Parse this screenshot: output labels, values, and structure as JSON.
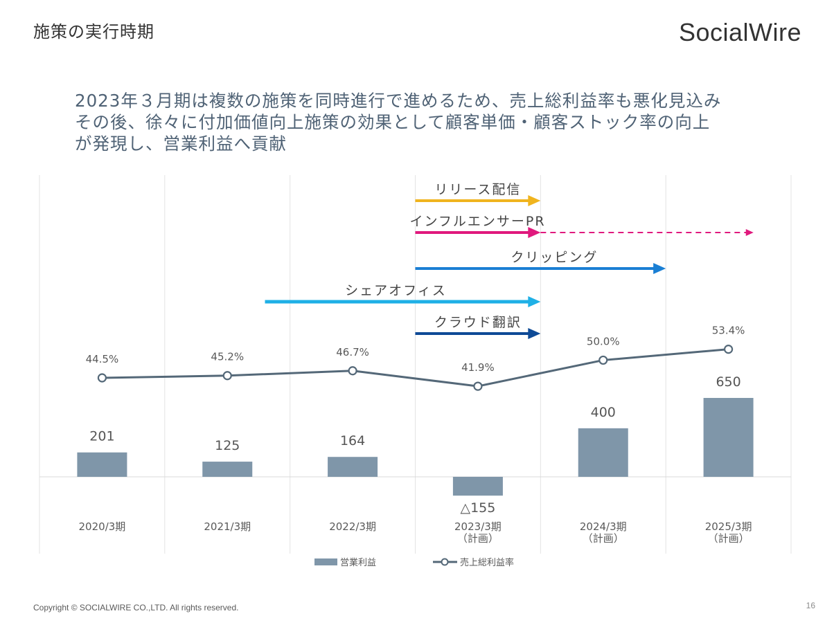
{
  "page": {
    "title": "施策の実行時期",
    "logo": "SocialWire",
    "headline_lines": [
      "2023年３月期は複数の施策を同時進行で進めるため、売上総利益率も悪化見込み",
      "その後、徐々に付加価値向上施策の効果として顧客単価・顧客ストック率の向上",
      "が発現し、営業利益へ貢献"
    ],
    "footer": "Copyright © SOCIALWIRE CO.,LTD. All rights reserved.",
    "page_number": "16"
  },
  "chart_data": {
    "type": "bar",
    "categories": [
      [
        "2020/3期"
      ],
      [
        "2021/3期"
      ],
      [
        "2022/3期"
      ],
      [
        "2023/3期",
        "（計画）"
      ],
      [
        "2024/3期",
        "（計画）"
      ],
      [
        "2025/3期",
        "（計画）"
      ]
    ],
    "series": [
      {
        "name": "営業利益",
        "type": "bar",
        "color": "#7f96a9",
        "values": [
          201,
          125,
          164,
          -155,
          400,
          650
        ],
        "labels": [
          "201",
          "125",
          "164",
          "△155",
          "400",
          "650"
        ]
      },
      {
        "name": "売上総利益率",
        "type": "line",
        "color": "#546878",
        "values": [
          44.5,
          45.2,
          46.7,
          41.9,
          50.0,
          53.4
        ],
        "labels": [
          "44.5%",
          "45.2%",
          "46.7%",
          "41.9%",
          "50.0%",
          "53.4%"
        ]
      }
    ],
    "legend_position": "bottom",
    "initiatives": [
      {
        "label": "リリース配信",
        "color": "#f0b41e",
        "start": 3.0,
        "end": 4.0,
        "dashed_end": null
      },
      {
        "label": "インフルエンサーPR",
        "color": "#e0197d",
        "start": 3.0,
        "end": 4.0,
        "dashed_end": 5.7
      },
      {
        "label": "クリッピング",
        "color": "#1a7fd4",
        "start": 3.0,
        "end": 5.0,
        "dashed_end": null
      },
      {
        "label": "シェアオフィス",
        "color": "#1fb0e6",
        "start": 1.8,
        "end": 4.0,
        "dashed_end": null
      },
      {
        "label": "クラウド翻訳",
        "color": "#0e4a96",
        "start": 3.0,
        "end": 4.0,
        "dashed_end": null
      }
    ]
  }
}
